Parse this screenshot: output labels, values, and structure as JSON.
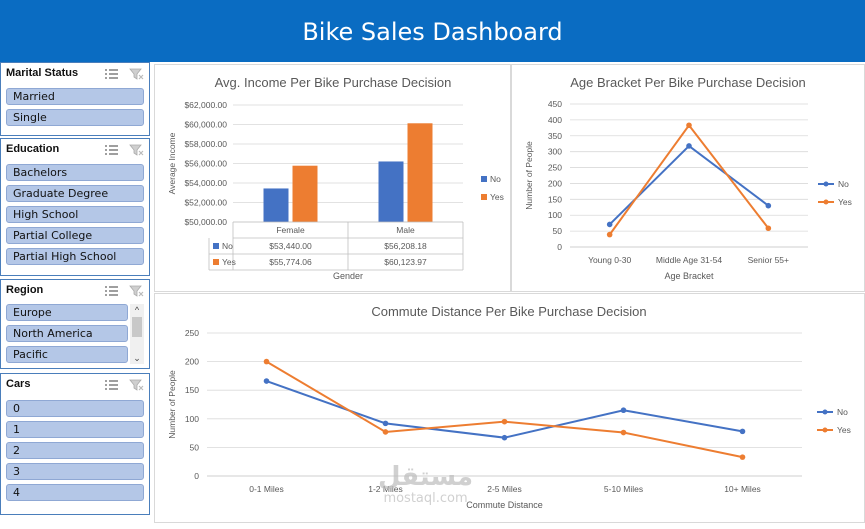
{
  "dashboard": {
    "title": "Bike Sales Dashboard"
  },
  "colors": {
    "header": "#0a6cc2",
    "no": "#4472c4",
    "yes": "#ed7d31",
    "slicer_item": "#b4c7e7"
  },
  "icons": {
    "multi_select": "multi-select-icon",
    "clear_filter": "clear-filter-icon"
  },
  "slicers": {
    "marital_status": {
      "title": "Marital Status",
      "items": [
        "Married",
        "Single"
      ]
    },
    "education": {
      "title": "Education",
      "items": [
        "Bachelors",
        "Graduate Degree",
        "High School",
        "Partial College",
        "Partial High School"
      ]
    },
    "region": {
      "title": "Region",
      "items": [
        "Europe",
        "North America",
        "Pacific"
      ]
    },
    "cars": {
      "title": "Cars",
      "items": [
        "0",
        "1",
        "2",
        "3",
        "4"
      ]
    }
  },
  "chart_data": [
    {
      "type": "bar",
      "title": "Avg. Income Per Bike Purchase Decision",
      "xlabel": "Gender",
      "ylabel": "Average Income",
      "categories": [
        "Female",
        "Male"
      ],
      "series": [
        {
          "name": "No",
          "values": [
            53440.0,
            56208.18
          ],
          "labels": [
            "$53,440.00",
            "$56,208.18"
          ]
        },
        {
          "name": "Yes",
          "values": [
            55774.06,
            60123.97
          ],
          "labels": [
            "$55,774.06",
            "$60,123.97"
          ]
        }
      ],
      "ylim": [
        50000,
        62000
      ],
      "yticks": [
        "$50,000.00",
        "$52,000.00",
        "$54,000.00",
        "$56,000.00",
        "$58,000.00",
        "$60,000.00",
        "$62,000.00"
      ],
      "data_table": true,
      "legend": "right",
      "grid": true
    },
    {
      "type": "line",
      "title": "Age Bracket Per Bike Purchase Decision",
      "xlabel": "Age Bracket",
      "ylabel": "Number of People",
      "categories": [
        "Young 0-30",
        "Middle Age 31-54",
        "Senior 55+"
      ],
      "series": [
        {
          "name": "No",
          "values": [
            71,
            318,
            130
          ]
        },
        {
          "name": "Yes",
          "values": [
            39,
            383,
            59
          ]
        }
      ],
      "ylim": [
        0,
        450
      ],
      "yticks": [
        "0",
        "50",
        "100",
        "150",
        "200",
        "250",
        "300",
        "350",
        "400",
        "450"
      ],
      "legend": "right",
      "grid": true
    },
    {
      "type": "line",
      "title": "Commute Distance Per Bike Purchase Decision",
      "xlabel": "Commute Distance",
      "ylabel": "Number of People",
      "categories": [
        "0-1 Miles",
        "1-2 Miles",
        "2-5 Miles",
        "5-10 Miles",
        "10+ Miles"
      ],
      "series": [
        {
          "name": "No",
          "values": [
            166,
            92,
            67,
            115,
            78
          ]
        },
        {
          "name": "Yes",
          "values": [
            200,
            77,
            95,
            76,
            33
          ]
        }
      ],
      "ylim": [
        0,
        250
      ],
      "yticks": [
        "0",
        "50",
        "100",
        "150",
        "200",
        "250"
      ],
      "legend": "right",
      "grid": true
    }
  ],
  "watermark": {
    "arabic": "مستقل",
    "latin": "mostaql.com"
  }
}
